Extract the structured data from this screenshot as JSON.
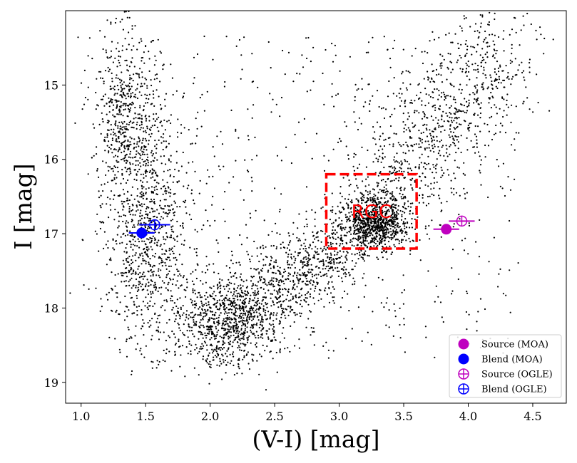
{
  "chart_data": {
    "type": "scatter",
    "title": "",
    "xlabel": "(V-I) [mag]",
    "ylabel": "I [mag]",
    "xlim": [
      0.88,
      4.76
    ],
    "ylim": [
      19.28,
      14.0
    ],
    "y_inverted": true,
    "x_ticks": [
      1.0,
      1.5,
      2.0,
      2.5,
      3.0,
      3.5,
      4.0,
      4.5
    ],
    "x_tick_labels": [
      "1.0",
      "1.5",
      "2.0",
      "2.5",
      "3.0",
      "3.5",
      "4.0",
      "4.5"
    ],
    "y_ticks": [
      15,
      16,
      17,
      18,
      19
    ],
    "y_tick_labels": [
      "15",
      "16",
      "17",
      "18",
      "19"
    ],
    "grid": false,
    "legend_position": "bottom-right",
    "field_stars": {
      "description_source": "visible black point cloud",
      "regions": [
        {
          "name": "main-sequence-disk",
          "x_center": 1.5,
          "y_center": 16.9,
          "x_spread": 0.28,
          "y_spread": 1.3
        },
        {
          "name": "upper-disk",
          "x_center": 1.35,
          "y_center": 15.3,
          "x_spread": 0.22,
          "y_spread": 0.9
        },
        {
          "name": "lower-bulge-turnoff",
          "x_center": 2.1,
          "y_center": 18.2,
          "x_spread": 0.35,
          "y_spread": 0.55
        },
        {
          "name": "subgiant-branch",
          "x_center": 2.7,
          "y_center": 17.6,
          "x_spread": 0.45,
          "y_spread": 0.5
        },
        {
          "name": "red-giant-clump",
          "x_center": 3.28,
          "y_center": 16.85,
          "x_spread": 0.2,
          "y_spread": 0.3
        },
        {
          "name": "red-giant-branch",
          "x_center": 3.7,
          "y_center": 15.6,
          "x_spread": 0.45,
          "y_spread": 0.9
        },
        {
          "name": "sparse-field",
          "x_center": 2.8,
          "y_center": 16.5,
          "x_spread": 1.6,
          "y_spread": 2.2
        }
      ]
    },
    "rgc_box": {
      "label": "RGC",
      "x_range": [
        2.9,
        3.6
      ],
      "y_range": [
        16.2,
        17.2
      ],
      "color": "#ff0000"
    },
    "series": [
      {
        "name": "Source (MOA)",
        "marker": "filled-circle",
        "color": "#bf00bf",
        "x": 3.83,
        "y": 16.94,
        "x_err": 0.1,
        "y_err": 0.0
      },
      {
        "name": "Blend (MOA)",
        "marker": "filled-circle",
        "color": "#0000ff",
        "x": 1.47,
        "y": 16.99,
        "x_err": 0.1,
        "y_err": 0.0
      },
      {
        "name": "Source (OGLE)",
        "marker": "open-circle-cross",
        "color": "#bf00bf",
        "x": 3.95,
        "y": 16.83,
        "x_err": 0.1,
        "y_err": 0.0
      },
      {
        "name": "Blend (OGLE)",
        "marker": "open-circle-cross",
        "color": "#0000ff",
        "x": 1.57,
        "y": 16.88,
        "x_err": 0.12,
        "y_err": 0.0
      }
    ]
  }
}
